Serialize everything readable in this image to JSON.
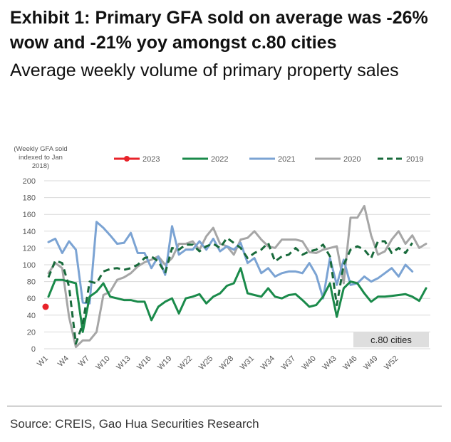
{
  "header": {
    "title": "Exhibit 1: Primary GFA sold on average was -26% wow and -21% yoy amongst c.80 cities",
    "subtitle": "Average weekly volume of primary property sales"
  },
  "footer": {
    "source": "Source: CREIS, Gao Hua Securities Research"
  },
  "chart_data": {
    "type": "line",
    "title": "Average weekly volume of primary property sales",
    "ylabel": "(Weekly GFA sold indexed to Jan 2018)",
    "ylabel_lines": [
      "(Weekly GFA sold",
      "indexed to Jan",
      "2018)"
    ],
    "ylim": [
      0,
      200
    ],
    "yticks": [
      0,
      20,
      40,
      60,
      80,
      100,
      120,
      140,
      160,
      180,
      200
    ],
    "xticks": [
      "W1",
      "W4",
      "W7",
      "W10",
      "W13",
      "W16",
      "W19",
      "W22",
      "W25",
      "W28",
      "W31",
      "W34",
      "W37",
      "W40",
      "W43",
      "W46",
      "W49",
      "W52"
    ],
    "grid": "horizontal",
    "legend_position": "top",
    "annotation": "c.80 cities",
    "series": [
      {
        "name": "2023",
        "color": "#e8232a",
        "style": "marker",
        "values": [
          50
        ]
      },
      {
        "name": "2022",
        "color": "#1a8a4a",
        "style": "solid",
        "values": [
          62,
          82,
          82,
          80,
          78,
          20,
          62,
          68,
          78,
          62,
          60,
          58,
          58,
          56,
          56,
          34,
          50,
          56,
          60,
          42,
          60,
          62,
          65,
          54,
          62,
          66,
          75,
          78,
          96,
          66,
          64,
          62,
          72,
          62,
          60,
          64,
          65,
          58,
          50,
          52,
          62,
          78,
          38,
          72,
          80,
          78,
          66,
          56,
          62,
          62,
          63,
          64,
          65,
          62,
          57,
          72
        ]
      },
      {
        "name": "2021",
        "color": "#7ba3d3",
        "style": "solid",
        "values": [
          127,
          131,
          114,
          128,
          118,
          55,
          54,
          151,
          144,
          135,
          125,
          126,
          138,
          114,
          114,
          96,
          110,
          88,
          146,
          112,
          118,
          118,
          128,
          118,
          131,
          116,
          122,
          118,
          126,
          102,
          108,
          90,
          96,
          86,
          90,
          92,
          92,
          90,
          102,
          88,
          60,
          108,
          76,
          106,
          76,
          78,
          86,
          80,
          84,
          90,
          96,
          86,
          100,
          92
        ]
      },
      {
        "name": "2020",
        "color": "#a6a6a6",
        "style": "solid",
        "values": [
          90,
          102,
          96,
          38,
          2,
          10,
          10,
          20,
          64,
          68,
          82,
          85,
          90,
          98,
          103,
          106,
          110,
          100,
          108,
          125,
          125,
          128,
          118,
          134,
          144,
          125,
          122,
          112,
          130,
          132,
          140,
          130,
          122,
          120,
          130,
          130,
          130,
          128,
          115,
          114,
          118,
          120,
          122,
          78,
          156,
          156,
          170,
          135,
          112,
          116,
          130,
          140,
          125,
          135,
          120,
          125
        ]
      },
      {
        "name": "2019",
        "color": "#186a3b",
        "style": "dashed",
        "values": [
          85,
          105,
          102,
          74,
          6,
          30,
          80,
          78,
          92,
          95,
          96,
          94,
          96,
          100,
          108,
          110,
          104,
          90,
          120,
          118,
          124,
          124,
          116,
          122,
          125,
          120,
          132,
          126,
          120,
          108,
          114,
          118,
          126,
          104,
          110,
          112,
          120,
          112,
          116,
          118,
          124,
          110,
          52,
          100,
          118,
          122,
          118,
          108,
          128,
          128,
          114,
          120,
          114,
          126
        ]
      }
    ]
  }
}
